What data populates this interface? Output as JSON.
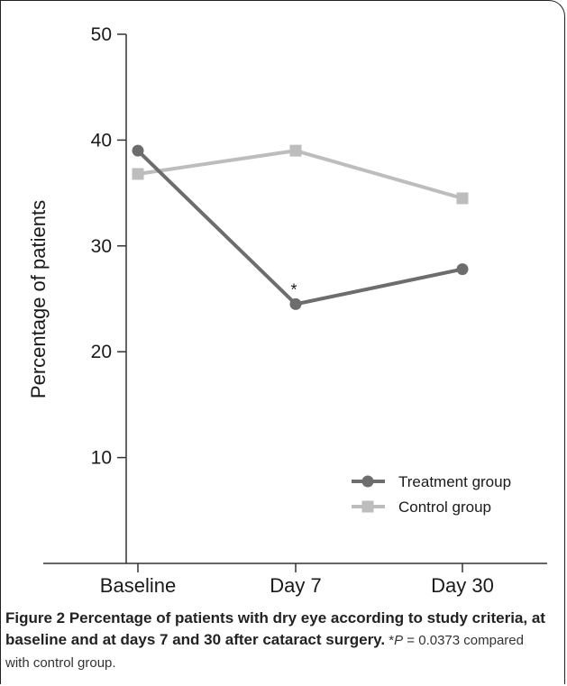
{
  "chart_data": {
    "type": "line",
    "categories": [
      "Baseline",
      "Day 7",
      "Day 30"
    ],
    "series": [
      {
        "name": "Treatment group",
        "values": [
          39.0,
          24.5,
          27.8
        ],
        "color": "#6d6d6d",
        "marker": "circle"
      },
      {
        "name": "Control group",
        "values": [
          36.8,
          39.0,
          34.5
        ],
        "color": "#bdbdbd",
        "marker": "square"
      }
    ],
    "xlabel": "",
    "ylabel": "Percentage of patients",
    "ylim": [
      0,
      50
    ],
    "yticks": [
      10,
      20,
      30,
      40,
      50
    ],
    "annotations": [
      {
        "text": "*",
        "category": "Day 7",
        "series": "Treatment group"
      }
    ],
    "legend_position": "bottom-right",
    "grid": false
  },
  "caption": {
    "title": "Figure 2 Percentage of patients with dry eye according to study criteria, at baseline and at days 7 and 30 after cataract surgery.",
    "note_prefix": " *",
    "note_p": "P",
    "note_rest": " = 0.0373 compared with control group."
  }
}
